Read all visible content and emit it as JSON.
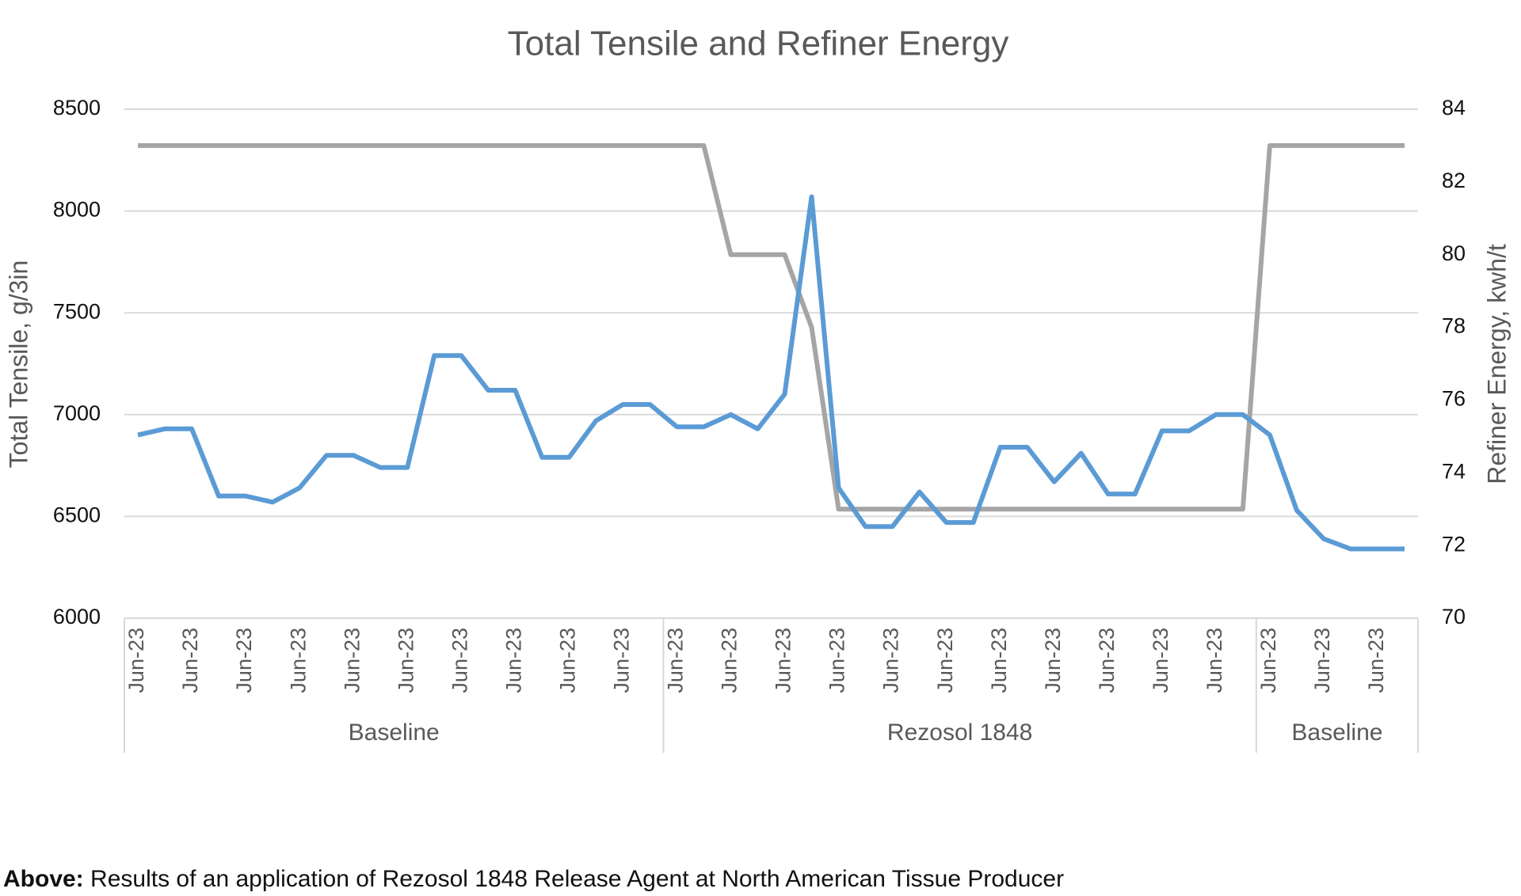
{
  "chart_data": {
    "type": "line",
    "title": "Total Tensile and Refiner Energy",
    "y_label": "Total Tensile, g/3in",
    "y2_label": "Refiner Energy, kwh/t",
    "categories": [
      "Jun-23",
      null,
      "Jun-23",
      null,
      "Jun-23",
      null,
      "Jun-23",
      null,
      "Jun-23",
      null,
      "Jun-23",
      null,
      "Jun-23",
      null,
      "Jun-23",
      null,
      "Jun-23",
      null,
      "Jun-23",
      null,
      "Jun-23",
      null,
      "Jun-23",
      null,
      "Jun-23",
      null,
      "Jun-23",
      null,
      "Jun-23",
      null,
      "Jun-23",
      null,
      "Jun-23",
      null,
      "Jun-23",
      null,
      "Jun-23",
      null,
      "Jun-23",
      null,
      "Jun-23",
      null,
      "Jun-23",
      null,
      "Jun-23",
      null,
      "Jun-23",
      null
    ],
    "groups": [
      {
        "label": "Baseline",
        "span": [
          0,
          19
        ]
      },
      {
        "label": "Rezosol 1848",
        "span": [
          20,
          41
        ]
      },
      {
        "label": "Baseline",
        "span": [
          42,
          47
        ]
      }
    ],
    "series": [
      {
        "color": "#5b9bd5",
        "axis": "y",
        "values": [
          6900,
          6930,
          6930,
          6600,
          6600,
          6570,
          6640,
          6800,
          6800,
          6740,
          6740,
          7290,
          7290,
          7120,
          7120,
          6790,
          6790,
          6970,
          7050,
          7050,
          6940,
          6940,
          7000,
          6930,
          7100,
          8070,
          6640,
          6450,
          6450,
          6620,
          6470,
          6470,
          6840,
          6840,
          6670,
          6810,
          6610,
          6610,
          6920,
          6920,
          7000,
          7000,
          6900,
          6530,
          6390,
          6340,
          6340,
          6340
        ]
      },
      {
        "color": "#a5a5a5",
        "axis": "y2",
        "values": [
          83,
          83,
          83,
          83,
          83,
          83,
          83,
          83,
          83,
          83,
          83,
          83,
          83,
          83,
          83,
          83,
          83,
          83,
          83,
          83,
          83,
          83,
          80,
          80,
          80,
          78,
          73,
          73,
          73,
          73,
          73,
          73,
          73,
          73,
          73,
          73,
          73,
          73,
          73,
          73,
          73,
          73,
          83,
          83,
          83,
          83,
          83,
          83
        ]
      }
    ],
    "ylim": [
      6000,
      8500
    ],
    "yticks": [
      6000,
      6500,
      7000,
      7500,
      8000,
      8500
    ],
    "y2lim": [
      70,
      84
    ],
    "y2ticks": [
      70,
      72,
      74,
      76,
      78,
      80,
      82,
      84
    ],
    "grid": true
  },
  "caption": {
    "label": "Above:",
    "text": "Results of an application of Rezosol 1848 Release Agent  at North American Tissue Producer"
  }
}
